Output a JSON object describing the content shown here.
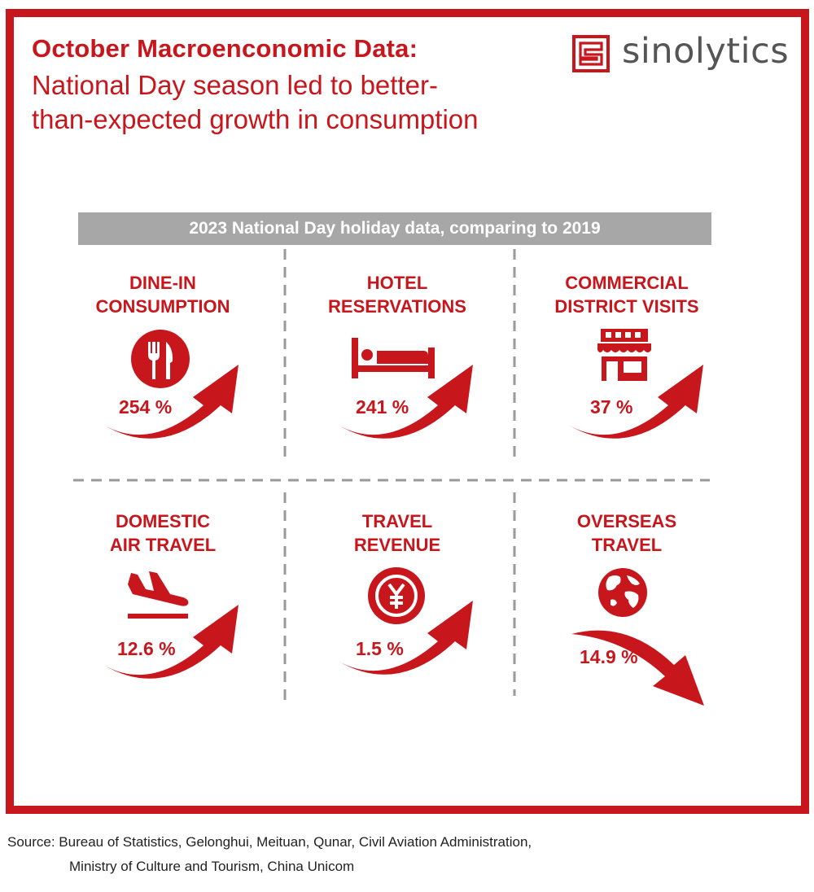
{
  "header": {
    "title_bold": "October Macroenconomic Data:",
    "title_line1": "National Day season led to better-",
    "title_line2": "than-expected growth in consumption"
  },
  "brand": {
    "name": "sinolytics",
    "logo_icon": "sinolytics-logo-icon"
  },
  "banner": {
    "text": "2023 National Day holiday data, comparing to 2019"
  },
  "colors": {
    "accent": "#c8161d",
    "banner_bg": "#a7a7a7",
    "logo_text": "#555555",
    "divider": "#9a9a9a"
  },
  "stats": [
    {
      "label_line1": "DINE-IN",
      "label_line2": "CONSUMPTION",
      "value": "254 %",
      "icon": "fork-knife-icon",
      "trend": "up"
    },
    {
      "label_line1": "HOTEL",
      "label_line2": "RESERVATIONS",
      "value": "241 %",
      "icon": "bed-icon",
      "trend": "up"
    },
    {
      "label_line1": "COMMERCIAL",
      "label_line2": "DISTRICT VISITS",
      "value": "37 %",
      "icon": "storefront-icon",
      "trend": "up"
    },
    {
      "label_line1": "DOMESTIC",
      "label_line2": "AIR TRAVEL",
      "value": "12.6 %",
      "icon": "airplane-landing-icon",
      "trend": "up"
    },
    {
      "label_line1": "TRAVEL",
      "label_line2": "REVENUE",
      "value": "1.5  %",
      "icon": "yuan-coin-icon",
      "trend": "up"
    },
    {
      "label_line1": "OVERSEAS",
      "label_line2": "TRAVEL",
      "value": "14.9 %",
      "icon": "globe-icon",
      "trend": "down"
    }
  ],
  "source": {
    "line1": "Source: Bureau of Statistics, Gelonghui, Meituan, Qunar, Civil Aviation Administration,",
    "line2": "Ministry of Culture and Tourism, China Unicom"
  }
}
